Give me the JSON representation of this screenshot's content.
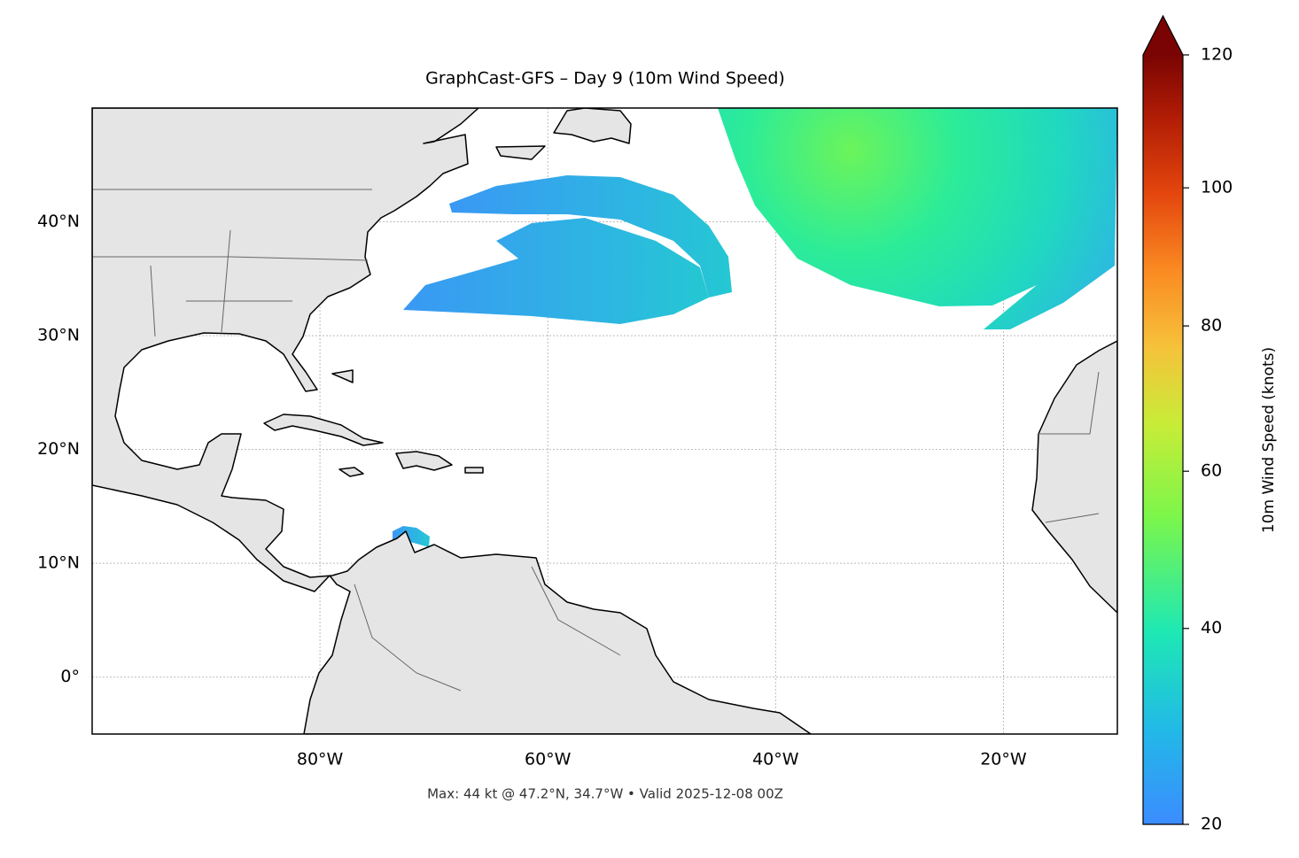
{
  "chart_data": {
    "type": "map",
    "title": "GraphCast-GFS – Day 9 (10m Wind Speed)",
    "subtitle": "Max: 44 kt @ 47.2°N, 34.7°W • Valid 2025-12-08 00Z",
    "xlim": [
      -100,
      -10
    ],
    "ylim": [
      -5,
      50
    ],
    "xticks": [
      {
        "value": -80,
        "label": "80°W"
      },
      {
        "value": -60,
        "label": "60°W"
      },
      {
        "value": -40,
        "label": "40°W"
      },
      {
        "value": -20,
        "label": "20°W"
      }
    ],
    "yticks": [
      {
        "value": 0,
        "label": "0°"
      },
      {
        "value": 10,
        "label": "10°N"
      },
      {
        "value": 20,
        "label": "20°N"
      },
      {
        "value": 30,
        "label": "30°N"
      },
      {
        "value": 40,
        "label": "40°N"
      }
    ],
    "grid": true,
    "colorbar": {
      "label": "10m Wind Speed (knots)",
      "lim": [
        20,
        120
      ],
      "ticks": [
        20,
        40,
        60,
        80,
        100,
        120
      ],
      "gamma": 0.85,
      "extend": "max"
    }
  }
}
